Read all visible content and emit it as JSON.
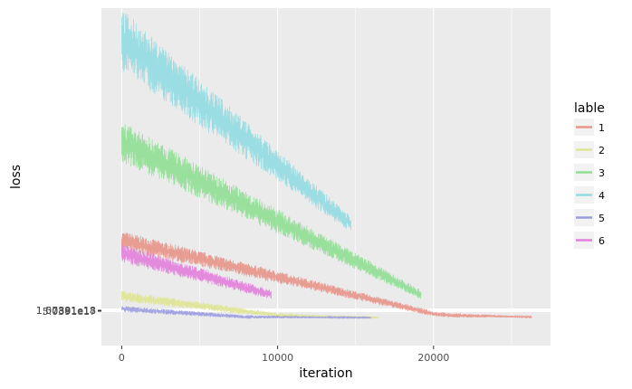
{
  "chart_data": {
    "type": "line",
    "xlabel": "iteration",
    "ylabel": "loss",
    "x_ticks": [
      0,
      10000,
      20000
    ],
    "x_tick_labels": [
      "0",
      "10000",
      "20000"
    ],
    "y_tick_labels": [
      "1.07891e18",
      "1.50381e18",
      "5.0391e17"
    ],
    "xlim": [
      -1300,
      27500
    ],
    "ylim": [
      -0.06,
      1.0
    ],
    "grid": true,
    "legend": {
      "title": "lable",
      "position": "right"
    },
    "series": [
      {
        "name": "1",
        "color": "#e8958a",
        "x_end": 26300,
        "segments": [
          [
            0,
            0.27
          ],
          [
            20000,
            0.04
          ],
          [
            21000,
            0.035
          ],
          [
            26300,
            0.03
          ]
        ],
        "noise": [
          0.06,
          0.003
        ]
      },
      {
        "name": "2",
        "color": "#dfe494",
        "x_end": 16500,
        "segments": [
          [
            0,
            0.095
          ],
          [
            10000,
            0.035
          ],
          [
            16500,
            0.028
          ]
        ],
        "noise": [
          0.035,
          0.002
        ]
      },
      {
        "name": "3",
        "color": "#8fdf93",
        "x_end": 19200,
        "segments": [
          [
            0,
            0.58
          ],
          [
            19200,
            0.1
          ]
        ],
        "noise": [
          0.13,
          0.03
        ]
      },
      {
        "name": "4",
        "color": "#91dce2",
        "x_end": 14700,
        "segments": [
          [
            0,
            0.9
          ],
          [
            14700,
            0.32
          ]
        ],
        "noise": [
          0.2,
          0.05
        ]
      },
      {
        "name": "5",
        "color": "#9b9ce0",
        "x_end": 16000,
        "segments": [
          [
            0,
            0.055
          ],
          [
            8000,
            0.03
          ],
          [
            16000,
            0.028
          ]
        ],
        "noise": [
          0.02,
          0.002
        ]
      },
      {
        "name": "6",
        "color": "#e27fdb",
        "x_end": 9600,
        "segments": [
          [
            0,
            0.23
          ],
          [
            9600,
            0.1
          ]
        ],
        "noise": [
          0.06,
          0.03
        ]
      }
    ]
  }
}
